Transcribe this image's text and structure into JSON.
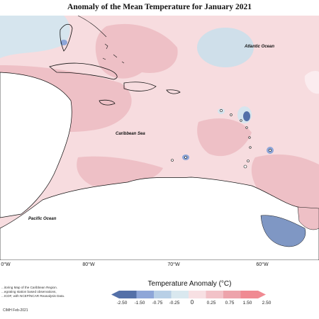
{
  "title": "Anomaly of the Mean Temperature for January 2021",
  "map": {
    "labels": {
      "atlantic": "Atlantic Ocean",
      "caribbean": "Caribbean Sea",
      "pacific": "Pacific Ocean"
    },
    "longitude_ticks": [
      "0°W",
      "80°W",
      "70°W",
      "60°W"
    ]
  },
  "legend": {
    "title": "Temperature Anomaly (°C)",
    "tick_labels": [
      "-2.50",
      "-1.50",
      "-0.75",
      "-0.25",
      "0",
      "0.25",
      "0.75",
      "1.50",
      "2.50"
    ],
    "colors": [
      "#5470a8",
      "#8ea6d8",
      "#b8cfe6",
      "#d9e8ef",
      "#f7e0e3",
      "#f2c2c8",
      "#eda3ab",
      "#f08a92"
    ]
  },
  "credits": {
    "lines": [
      "...itoring Map of the Caribbean Region.",
      "...egrating station based observations,",
      "...ICDF, with NCEP/NCAR Reanalysis Data."
    ],
    "issued": "CIMH Feb-2021"
  }
}
